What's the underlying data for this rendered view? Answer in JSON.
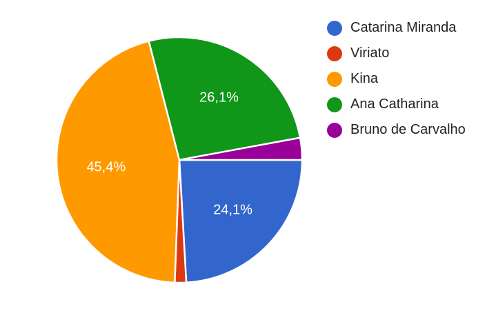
{
  "chart_data": {
    "type": "pie",
    "title": "",
    "legend_position": "right",
    "slices": [
      {
        "name": "Catarina Miranda",
        "value": 24.1,
        "label": "24,1%",
        "color": "#3366cc"
      },
      {
        "name": "Viriato",
        "value": 1.5,
        "label": "",
        "color": "#dc3912"
      },
      {
        "name": "Kina",
        "value": 45.4,
        "label": "45,4%",
        "color": "#ff9900"
      },
      {
        "name": "Ana Catharina",
        "value": 26.1,
        "label": "26,1%",
        "color": "#109618"
      },
      {
        "name": "Bruno de Carvalho",
        "value": 2.9,
        "label": "",
        "color": "#990099"
      }
    ]
  },
  "legend": {
    "items": [
      {
        "label": "Catarina Miranda",
        "color": "#3366cc"
      },
      {
        "label": "Viriato",
        "color": "#dc3912"
      },
      {
        "label": "Kina",
        "color": "#ff9900"
      },
      {
        "label": "Ana Catharina",
        "color": "#109618"
      },
      {
        "label": "Bruno de Carvalho",
        "color": "#990099"
      }
    ]
  }
}
